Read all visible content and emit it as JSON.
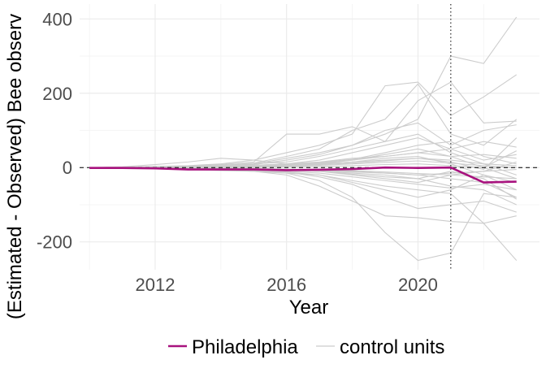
{
  "chart_data": {
    "type": "line",
    "xlabel": "Year",
    "ylabel": "(Estimated - Observed) Bee observ",
    "xlim": [
      2009.7,
      2023.7
    ],
    "ylim": [
      -275,
      440
    ],
    "x_ticks": [
      2012,
      2016,
      2020
    ],
    "y_ticks": [
      -200,
      0,
      200,
      400
    ],
    "x_tick_labels": [
      "2012",
      "2016",
      "2020"
    ],
    "y_tick_labels": [
      "-200",
      "0",
      "200",
      "400"
    ],
    "grid": true,
    "reference_hline": 0,
    "treatment_vline": 2021,
    "legend_position": "bottom",
    "legend": [
      {
        "label": "Philadelphia",
        "color": "#a8127e"
      },
      {
        "label": "control units",
        "color": "#cccccc"
      }
    ],
    "x": [
      2010,
      2011,
      2012,
      2013,
      2014,
      2015,
      2016,
      2017,
      2018,
      2019,
      2020,
      2021,
      2022,
      2023
    ],
    "treated": {
      "name": "Philadelphia",
      "values": [
        -1,
        -1,
        -2,
        -5,
        -5,
        -5,
        -7,
        -6,
        -4,
        0,
        -1,
        0,
        -40,
        -38
      ]
    },
    "controls": [
      [
        0,
        0,
        1,
        2,
        4,
        8,
        20,
        35,
        60,
        90,
        130,
        300,
        280,
        405
      ],
      [
        0,
        1,
        3,
        5,
        10,
        20,
        40,
        60,
        90,
        220,
        230,
        140,
        190,
        250
      ],
      [
        0,
        0,
        2,
        3,
        6,
        12,
        30,
        50,
        100,
        130,
        225,
        90,
        60,
        130
      ],
      [
        0,
        1,
        2,
        4,
        8,
        15,
        90,
        90,
        110,
        70,
        180,
        230,
        120,
        125
      ],
      [
        0,
        0,
        1,
        3,
        6,
        10,
        25,
        40,
        60,
        100,
        120,
        60,
        100,
        115
      ],
      [
        0,
        2,
        8,
        15,
        25,
        20,
        10,
        20,
        40,
        60,
        80,
        50,
        20,
        35
      ],
      [
        0,
        1,
        2,
        1,
        5,
        10,
        15,
        30,
        50,
        70,
        90,
        40,
        10,
        -20
      ],
      [
        0,
        0,
        1,
        2,
        3,
        5,
        8,
        10,
        20,
        30,
        40,
        30,
        35,
        25
      ],
      [
        0,
        0,
        -1,
        -2,
        -4,
        -8,
        -12,
        -20,
        -40,
        -60,
        -80,
        -60,
        -20,
        -40
      ],
      [
        0,
        -1,
        -3,
        -5,
        -8,
        -10,
        -15,
        -35,
        -80,
        -175,
        -250,
        -230,
        -70,
        -80
      ],
      [
        0,
        -1,
        -2,
        -4,
        -6,
        -10,
        -20,
        -50,
        -90,
        -130,
        -135,
        -145,
        -150,
        -250
      ],
      [
        0,
        0,
        -1,
        -3,
        -5,
        -8,
        -12,
        -25,
        -45,
        -80,
        -110,
        -100,
        -90,
        -120
      ],
      [
        0,
        -1,
        -2,
        -3,
        -6,
        -10,
        -15,
        -20,
        -35,
        -50,
        -60,
        -70,
        -150,
        -130
      ],
      [
        0,
        0,
        -1,
        -2,
        -3,
        -5,
        -8,
        -10,
        -15,
        -20,
        -30,
        -50,
        -60,
        -100
      ],
      [
        0,
        0,
        0,
        1,
        0,
        -2,
        -5,
        -8,
        -10,
        -15,
        -20,
        -30,
        -40,
        -80
      ],
      [
        0,
        0,
        1,
        2,
        2,
        4,
        6,
        10,
        15,
        20,
        25,
        20,
        10,
        5
      ],
      [
        0,
        1,
        2,
        3,
        4,
        6,
        10,
        15,
        25,
        30,
        40,
        50,
        70,
        55
      ],
      [
        0,
        0,
        1,
        1,
        2,
        3,
        5,
        10,
        15,
        25,
        30,
        10,
        -20,
        -60
      ],
      [
        0,
        0,
        0,
        -1,
        -2,
        -4,
        -6,
        -10,
        -20,
        -30,
        -40,
        -20,
        -10,
        15
      ],
      [
        0,
        0,
        1,
        2,
        3,
        5,
        8,
        12,
        20,
        35,
        50,
        30,
        0,
        -30
      ],
      [
        0,
        -1,
        -1,
        -2,
        -3,
        -6,
        -10,
        -15,
        -25,
        -35,
        -45,
        -55,
        -45,
        -60
      ],
      [
        0,
        0,
        1,
        0,
        1,
        2,
        4,
        8,
        12,
        18,
        25,
        15,
        -5,
        80
      ],
      [
        0,
        0,
        -1,
        -1,
        -2,
        -3,
        -6,
        -10,
        -18,
        -25,
        -30,
        -10,
        -30,
        -85
      ],
      [
        0,
        1,
        1,
        2,
        4,
        6,
        9,
        14,
        22,
        40,
        60,
        70,
        30,
        10
      ],
      [
        0,
        0,
        0,
        0,
        -1,
        -2,
        -4,
        -6,
        -8,
        -12,
        -16,
        -20,
        -25,
        -30
      ],
      [
        0,
        0,
        1,
        1,
        2,
        3,
        4,
        6,
        10,
        14,
        18,
        12,
        5,
        0
      ],
      [
        0,
        -1,
        -2,
        -2,
        -3,
        -4,
        -5,
        -8,
        -12,
        -15,
        -20,
        -15,
        -10,
        -5
      ],
      [
        0,
        0,
        0,
        1,
        1,
        1,
        2,
        3,
        5,
        8,
        10,
        5,
        0,
        45
      ]
    ]
  }
}
